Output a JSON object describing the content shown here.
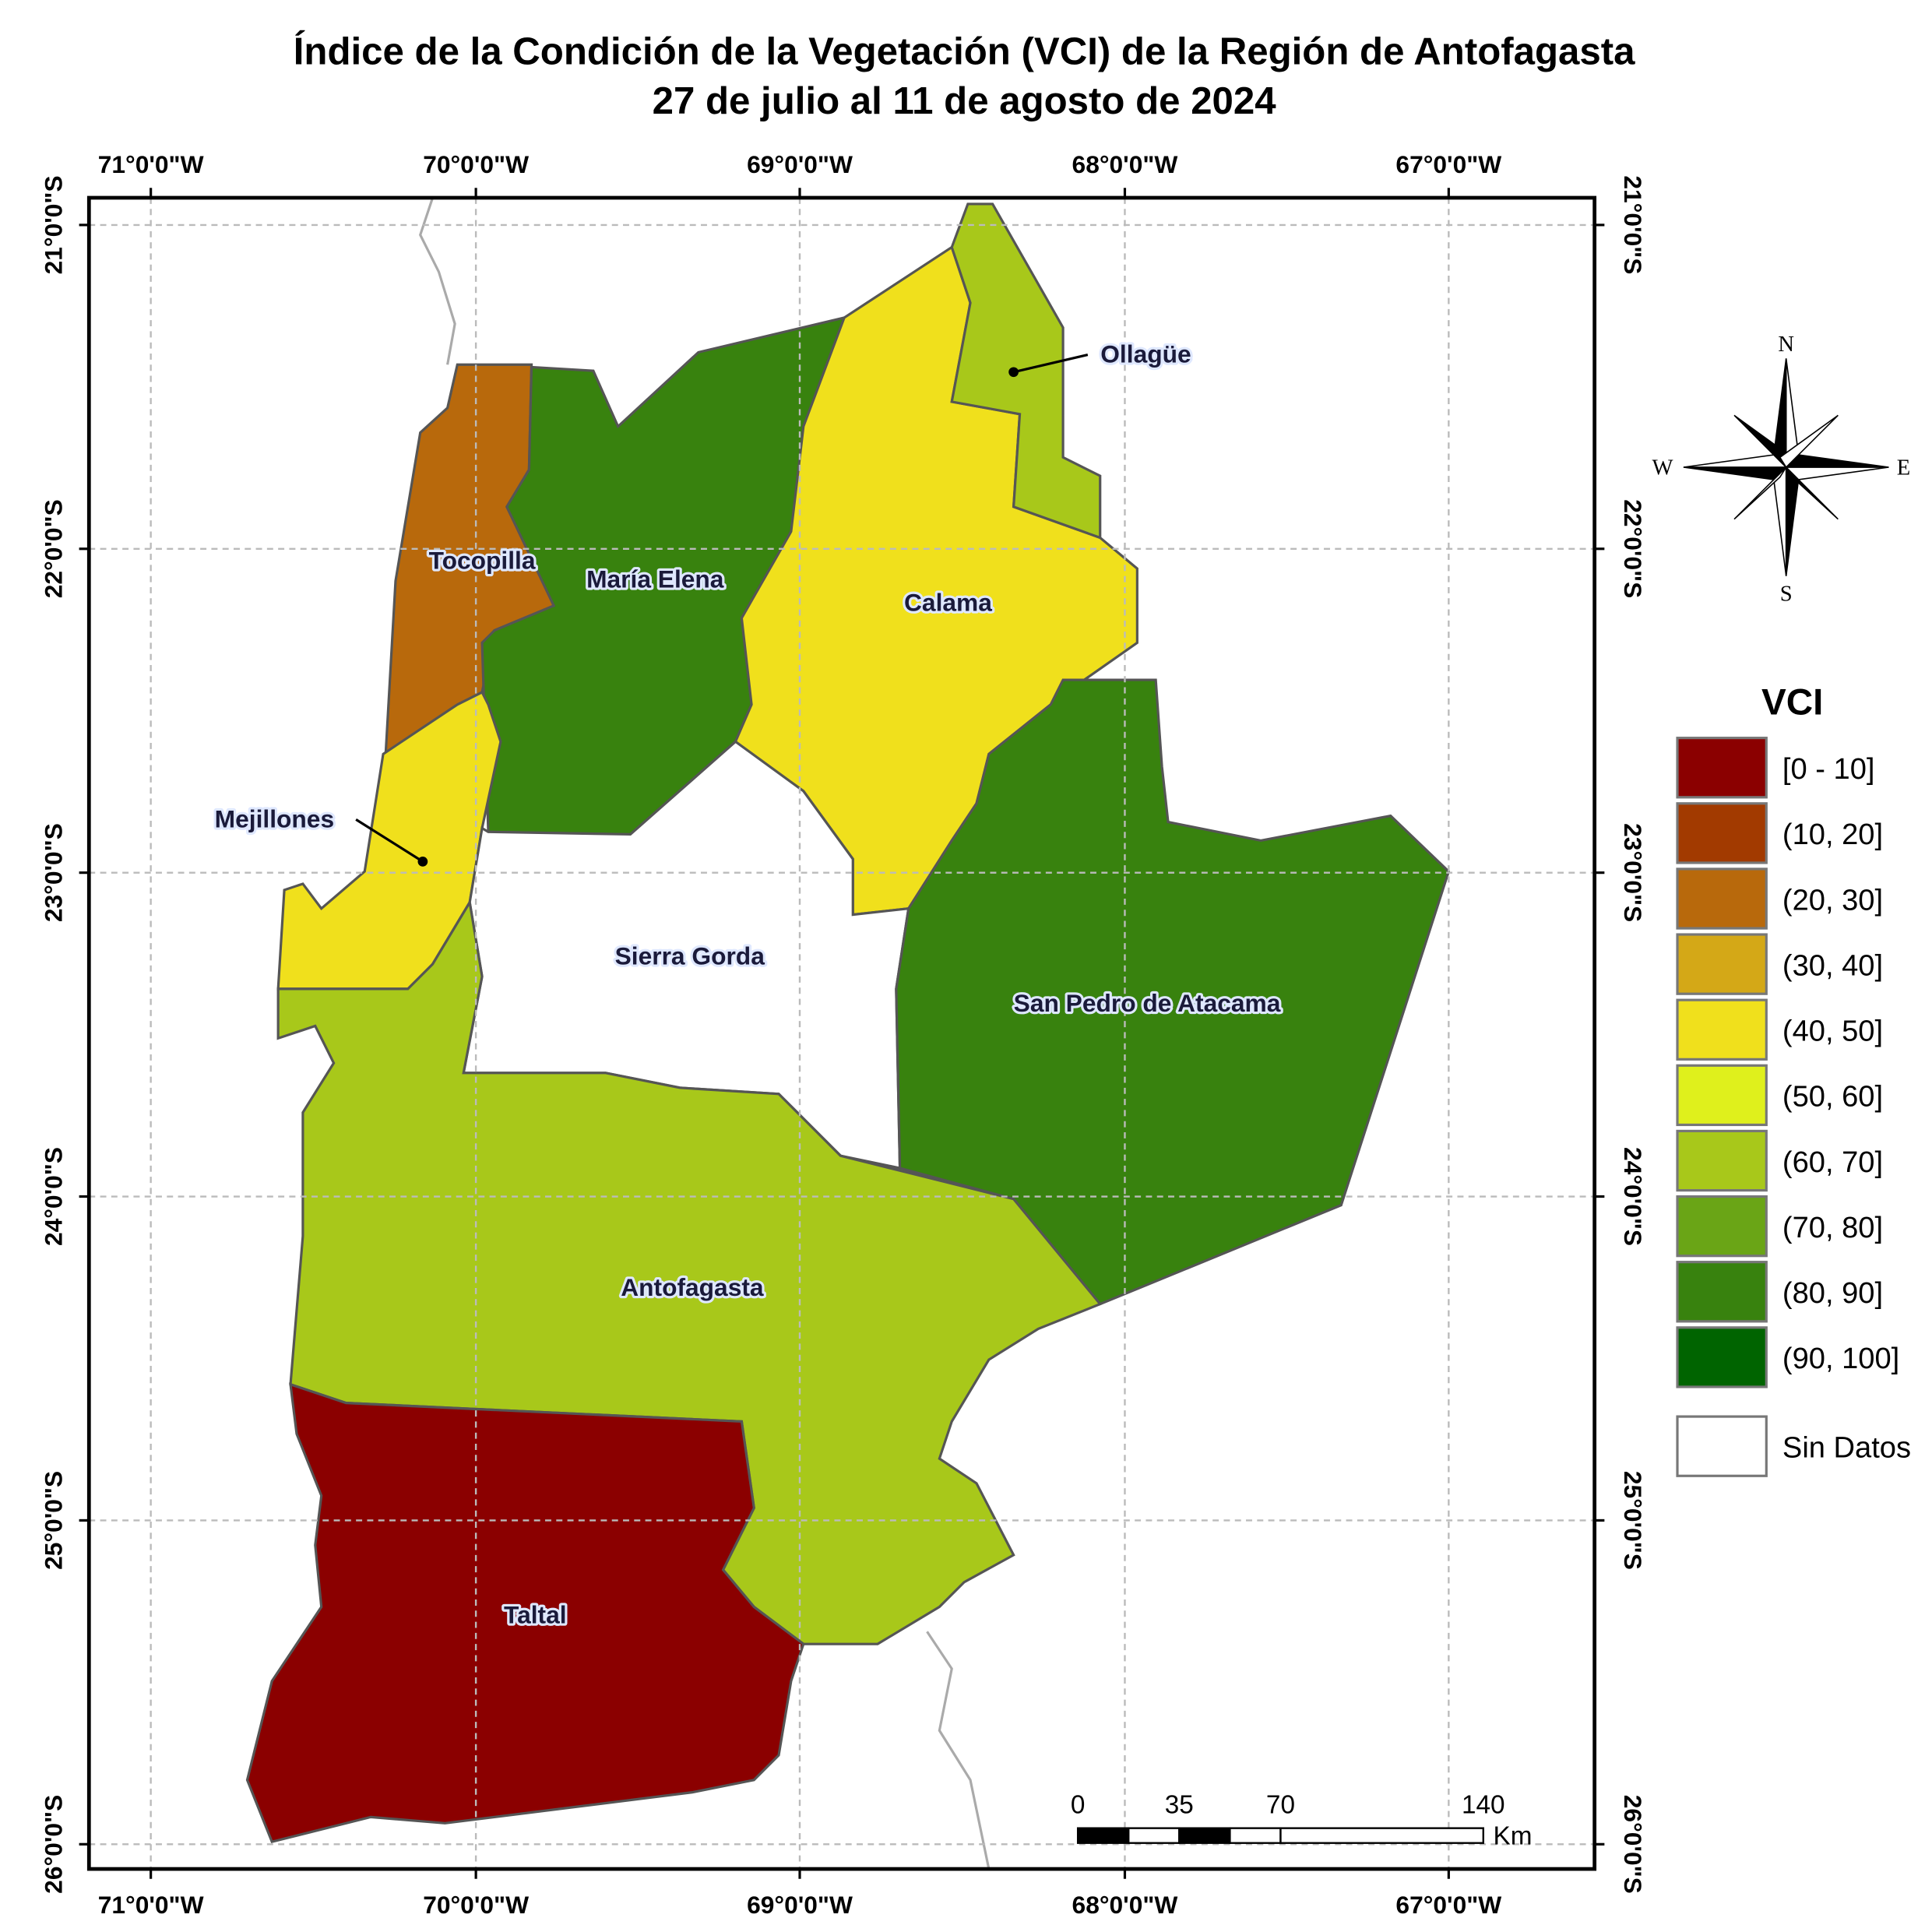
{
  "title": [
    "Índice de la Condición de la Vegetación (VCI) de la Región de Antofagasta",
    "27 de julio al 11 de agosto de 2024"
  ],
  "longitude_labels": [
    "71°0'0\"W",
    "70°0'0\"W",
    "69°0'0\"W",
    "68°0'0\"W",
    "67°0'0\"W"
  ],
  "latitude_labels": [
    "21°0'0\"S",
    "22°0'0\"S",
    "23°0'0\"S",
    "24°0'0\"S",
    "25°0'0\"S",
    "26°0'0\"S"
  ],
  "regions": [
    {
      "label": "Tocopilla",
      "color": "#b8690c"
    },
    {
      "label": "María Elena",
      "color": "#38820e"
    },
    {
      "label": "Calama",
      "color": "#f0e01c"
    },
    {
      "label": "Ollagüe",
      "color": "#a8c81a"
    },
    {
      "label": "Mejillones",
      "color": "#f0e01c"
    },
    {
      "label": "Sierra Gorda",
      "color": "#ffffff"
    },
    {
      "label": "San Pedro de Atacama",
      "color": "#38820e"
    },
    {
      "label": "Antofagasta",
      "color": "#a8c81a"
    },
    {
      "label": "Taltal",
      "color": "#8b0000"
    }
  ],
  "legend": {
    "title": "VCI",
    "items": [
      {
        "label": "[0 - 10]",
        "color": "#8b0000"
      },
      {
        "label": "(10, 20]",
        "color": "#a23a00"
      },
      {
        "label": "(20, 30]",
        "color": "#b8690c"
      },
      {
        "label": "(30, 40]",
        "color": "#d4a817"
      },
      {
        "label": "(40, 50]",
        "color": "#f0e01c"
      },
      {
        "label": "(50, 60]",
        "color": "#dff01c"
      },
      {
        "label": "(60, 70]",
        "color": "#a8c81a"
      },
      {
        "label": "(70, 80]",
        "color": "#6aa516"
      },
      {
        "label": "(80, 90]",
        "color": "#38820e"
      },
      {
        "label": "(90, 100]",
        "color": "#006400"
      }
    ],
    "no_data": {
      "label": "Sin Datos",
      "color": "#ffffff"
    }
  },
  "scale_bar": {
    "labels": [
      0,
      35,
      70,
      140
    ],
    "unit": "Km"
  },
  "compass": {
    "north": "N",
    "east": "E",
    "south": "S",
    "west": "W"
  }
}
